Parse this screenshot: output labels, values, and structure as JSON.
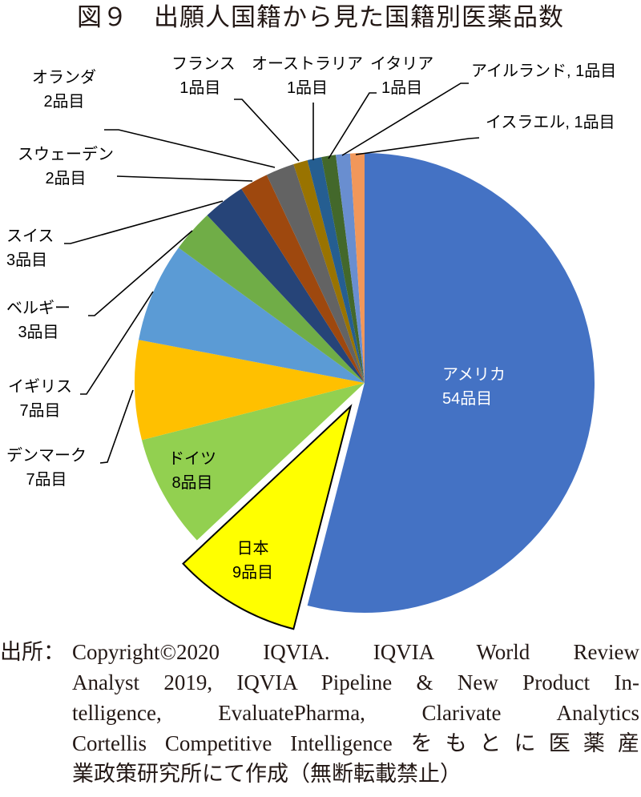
{
  "header": {
    "title": "図９　出願人国籍から見た国籍別医薬品数"
  },
  "chart_data": {
    "type": "pie",
    "title": "図９　出願人国籍から見た国籍別医薬品数",
    "unit": "品目",
    "start_angle_deg": 0,
    "direction": "clockwise",
    "exploded": [
      "日本"
    ],
    "slices": [
      {
        "label": "アメリカ",
        "value": 54,
        "color": "#4472C4",
        "text": "54品目"
      },
      {
        "label": "日本",
        "value": 9,
        "color": "#FFFF00",
        "text": "9品目"
      },
      {
        "label": "ドイツ",
        "value": 8,
        "color": "#92D050",
        "text": "8品目"
      },
      {
        "label": "デンマーク",
        "value": 7,
        "color": "#FFC000",
        "text": "7品目"
      },
      {
        "label": "イギリス",
        "value": 7,
        "color": "#5B9BD5",
        "text": "7品目"
      },
      {
        "label": "ベルギー",
        "value": 3,
        "color": "#70AD47",
        "text": "3品目"
      },
      {
        "label": "スイス",
        "value": 3,
        "color": "#264478",
        "text": "3品目"
      },
      {
        "label": "スウェーデン",
        "value": 2,
        "color": "#9E480E",
        "text": "2品目"
      },
      {
        "label": "オランダ",
        "value": 2,
        "color": "#636363",
        "text": "2品目"
      },
      {
        "label": "フランス",
        "value": 1,
        "color": "#997300",
        "text": "1品目"
      },
      {
        "label": "オーストラリア",
        "value": 1,
        "color": "#255E91",
        "text": "1品目"
      },
      {
        "label": "イタリア",
        "value": 1,
        "color": "#43682B",
        "text": "1品目"
      },
      {
        "label": "アイルランド",
        "value": 1,
        "color": "#698ED0",
        "text": "1品目"
      },
      {
        "label": "イスラエル",
        "value": 1,
        "color": "#F1975A",
        "text": "1品目"
      }
    ],
    "total": 100
  },
  "labels": {
    "america": {
      "name": "アメリカ",
      "count": "54品目"
    },
    "japan": {
      "name": "日本",
      "count": "9品目"
    },
    "germany": {
      "name": "ドイツ",
      "count": "8品目"
    },
    "denmark": {
      "name": "デンマーク",
      "count": "7品目"
    },
    "uk": {
      "name": "イギリス",
      "count": "7品目"
    },
    "belgium": {
      "name": "ベルギー",
      "count": "3品目"
    },
    "switzerland": {
      "name": "スイス",
      "count": "3品目"
    },
    "sweden": {
      "name": "スウェーデン",
      "count": "2品目"
    },
    "netherlands": {
      "name": "オランダ",
      "count": "2品目"
    },
    "france": {
      "name": "フランス",
      "count": "1品目"
    },
    "australia": {
      "name": "オーストラリア",
      "count": "1品目"
    },
    "italy": {
      "name": "イタリア",
      "count": "1品目"
    },
    "ireland": {
      "text": "アイルランド, 1品目"
    },
    "israel": {
      "text": "イスラエル, 1品目"
    }
  },
  "source": {
    "prefix": "出所：",
    "lines": [
      "Copyright©2020 IQVIA. IQVIA World Review",
      "Analyst 2019, IQVIA Pipeline & New Product In-",
      "telligence, EvaluatePharma, Clarivate Analytics",
      "Cortellis Competitive Intelligence をもとに医薬産",
      "業政策研究所にて作成（無断転載禁止）"
    ]
  }
}
